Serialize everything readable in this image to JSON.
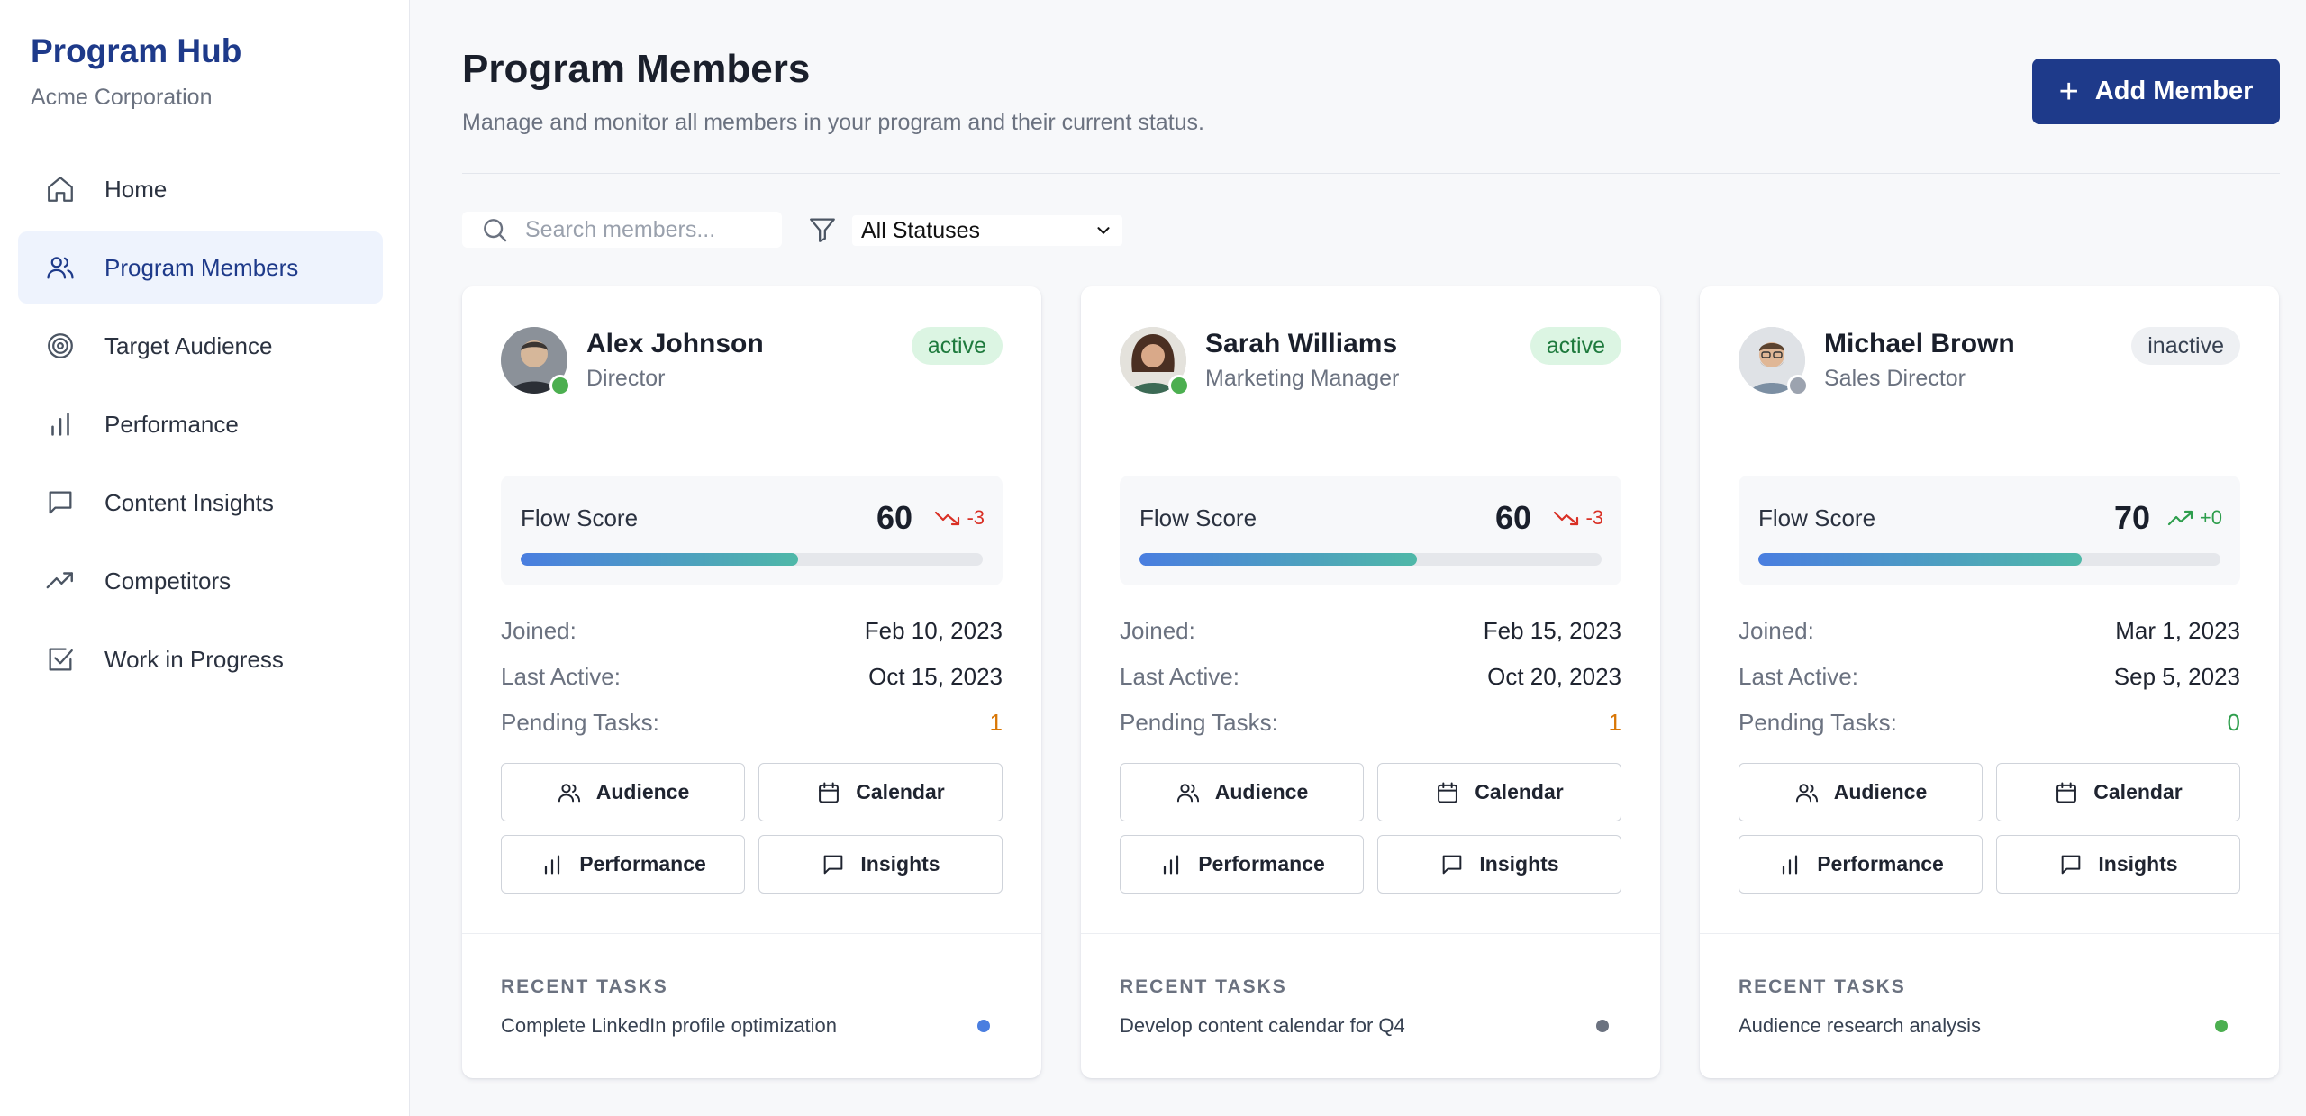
{
  "sidebar": {
    "title": "Program Hub",
    "subtitle": "Acme Corporation",
    "items": [
      {
        "label": "Home",
        "icon": "home-icon"
      },
      {
        "label": "Program Members",
        "icon": "users-icon",
        "active": true
      },
      {
        "label": "Target Audience",
        "icon": "target-icon"
      },
      {
        "label": "Performance",
        "icon": "bar-chart-icon"
      },
      {
        "label": "Content Insights",
        "icon": "message-icon"
      },
      {
        "label": "Competitors",
        "icon": "trending-up-icon"
      },
      {
        "label": "Work in Progress",
        "icon": "checkbox-icon"
      }
    ]
  },
  "header": {
    "title": "Program Members",
    "subtitle": "Manage and monitor all members in your program and their current status.",
    "add_label": "Add Member"
  },
  "filters": {
    "search_placeholder": "Search members...",
    "status_value": "All Statuses"
  },
  "labels": {
    "flow_score": "Flow Score",
    "joined": "Joined:",
    "last_active": "Last Active:",
    "pending_tasks": "Pending Tasks:",
    "audience": "Audience",
    "calendar": "Calendar",
    "performance": "Performance",
    "insights": "Insights",
    "recent_tasks": "RECENT TASKS"
  },
  "colors": {
    "accent": "#1e3a8a",
    "online": "#4caf50",
    "offline": "#9ca3af",
    "task_blue": "#4a7ee0",
    "task_gray": "#6b7280",
    "task_green": "#4caf50"
  },
  "members": [
    {
      "name": "Alex Johnson",
      "role": "Director",
      "status": "active",
      "flow_score": "60",
      "flow_fraction": 0.6,
      "trend": "-3",
      "trend_dir": "down",
      "joined": "Feb 10, 2023",
      "last_active": "Oct 15, 2023",
      "pending_tasks": "1",
      "recent_task": "Complete LinkedIn profile optimization"
    },
    {
      "name": "Sarah Williams",
      "role": "Marketing Manager",
      "status": "active",
      "flow_score": "60",
      "flow_fraction": 0.6,
      "trend": "-3",
      "trend_dir": "down",
      "joined": "Feb 15, 2023",
      "last_active": "Oct 20, 2023",
      "pending_tasks": "1",
      "recent_task": "Develop content calendar for Q4"
    },
    {
      "name": "Michael Brown",
      "role": "Sales Director",
      "status": "inactive",
      "flow_score": "70",
      "flow_fraction": 0.7,
      "trend": "+0",
      "trend_dir": "up",
      "joined": "Mar 1, 2023",
      "last_active": "Sep 5, 2023",
      "pending_tasks": "0",
      "recent_task": "Audience research analysis"
    }
  ]
}
